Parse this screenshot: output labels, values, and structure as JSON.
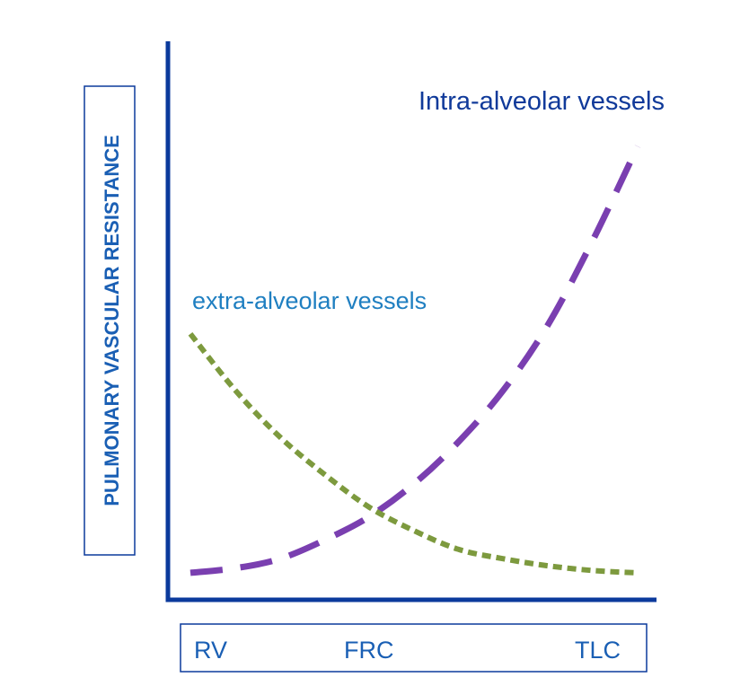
{
  "chart_data": {
    "type": "line",
    "title": "",
    "ylabel": "PULMONARY VASCULAR RESISTANCE",
    "xlabel": "",
    "x_ticks": [
      "RV",
      "FRC",
      "TLC"
    ],
    "x_tick_positions": [
      0,
      0.42,
      1
    ],
    "xlim": [
      0,
      1
    ],
    "ylim": [
      0,
      1
    ],
    "grid": false,
    "axis_color": "#0b3a9c",
    "label_color": "#1a5fb4",
    "series": [
      {
        "name": "Intra-alveolar vessels",
        "label_color": "#103a9a",
        "color": "#7a3fb0",
        "style": "long-dashed",
        "x": [
          0,
          0.1,
          0.2,
          0.3,
          0.4,
          0.5,
          0.6,
          0.7,
          0.8,
          0.9,
          1.0
        ],
        "y": [
          0.0,
          0.01,
          0.03,
          0.07,
          0.12,
          0.19,
          0.28,
          0.39,
          0.53,
          0.71,
          0.91
        ]
      },
      {
        "name": "extra-alveolar vessels",
        "label_color": "#1f7fc1",
        "color": "#7d9a3e",
        "style": "short-dashed",
        "x": [
          0,
          0.1,
          0.2,
          0.3,
          0.4,
          0.5,
          0.6,
          0.7,
          0.8,
          0.9,
          1.0
        ],
        "y": [
          0.51,
          0.39,
          0.29,
          0.21,
          0.14,
          0.09,
          0.05,
          0.03,
          0.015,
          0.005,
          0.0
        ]
      }
    ]
  }
}
